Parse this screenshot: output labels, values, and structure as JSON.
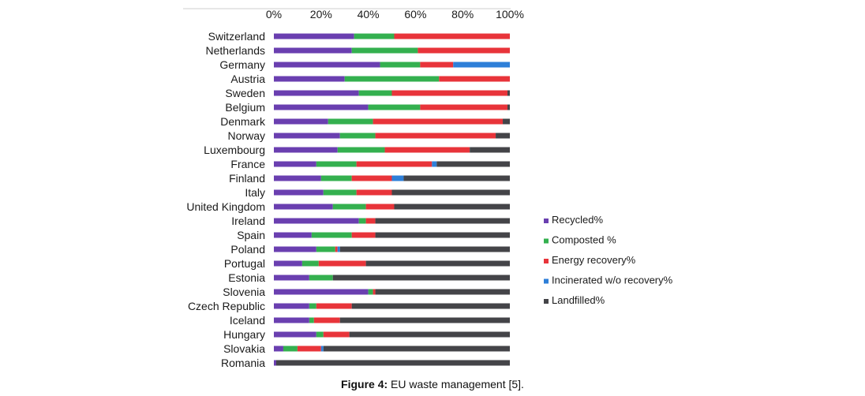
{
  "caption": {
    "label": "Figure 4:",
    "text": " EU waste management [5]."
  },
  "chart_data": {
    "type": "bar",
    "orientation": "horizontal",
    "stacked": true,
    "x_ticks": [
      "0%",
      "20%",
      "40%",
      "60%",
      "80%",
      "100%"
    ],
    "xlim": [
      0,
      100
    ],
    "x_axis_position": "top",
    "grid": false,
    "legend_position": "right",
    "categories": [
      "Switzerland",
      "Netherlands",
      "Germany",
      "Austria",
      "Sweden",
      "Belgium",
      "Denmark",
      "Norway",
      "Luxembourg",
      "France",
      "Finland",
      "Italy",
      "United Kingdom",
      "Ireland",
      "Spain",
      "Poland",
      "Portugal",
      "Estonia",
      "Slovenia",
      "Czech Republic",
      "Iceland",
      "Hungary",
      "Slovakia",
      "Romania"
    ],
    "series": [
      {
        "name": "Recycled%",
        "color": "#6a3fb0",
        "values": [
          34,
          33,
          45,
          30,
          36,
          40,
          23,
          28,
          27,
          18,
          20,
          21,
          25,
          36,
          16,
          18,
          12,
          15,
          40,
          15,
          15,
          18,
          4,
          1
        ]
      },
      {
        "name": "Composted %",
        "color": "#34b04f",
        "values": [
          17,
          28,
          17,
          40,
          14,
          22,
          19,
          15,
          20,
          17,
          13,
          14,
          14,
          3,
          17,
          8,
          7,
          10,
          2,
          3,
          2,
          3,
          6,
          0
        ]
      },
      {
        "name": "Energy recovery%",
        "color": "#e8343a",
        "values": [
          49,
          39,
          14,
          30,
          49,
          37,
          55,
          51,
          36,
          32,
          17,
          15,
          12,
          4,
          10,
          1,
          20,
          0,
          1,
          15,
          11,
          11,
          10,
          0
        ]
      },
      {
        "name": "Incinerated w/o recovery%",
        "color": "#2e7fd8",
        "values": [
          0,
          0,
          24,
          0,
          0,
          0,
          0,
          0,
          0,
          2,
          5,
          0,
          0,
          0,
          0,
          1,
          0,
          0,
          0,
          0,
          0,
          0,
          1,
          0
        ]
      },
      {
        "name": "Landfilled%",
        "color": "#444448",
        "values": [
          0,
          0,
          0,
          0,
          1,
          1,
          3,
          6,
          17,
          31,
          45,
          50,
          49,
          57,
          57,
          72,
          61,
          75,
          57,
          67,
          72,
          68,
          79,
          99
        ]
      }
    ]
  }
}
